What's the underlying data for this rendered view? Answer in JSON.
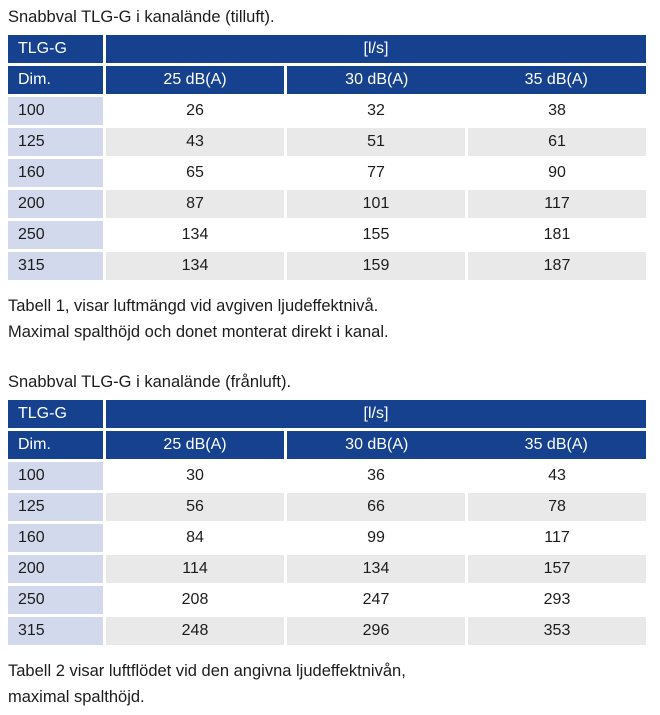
{
  "colors": {
    "header_bg": "#16418e",
    "header_text": "#ffffff",
    "dim_column_bg": "#d3d9ec",
    "stripe_bg": "#e9e9e9",
    "body_text": "#1c1c1c",
    "page_bg": "#ffffff"
  },
  "sections": [
    {
      "title": "Snabbval TLG-G i kanalände (tilluft).",
      "table": {
        "corner_label": "TLG-G",
        "unit_label": "[l/s]",
        "dim_label": "Dim.",
        "col_headers": [
          "25 dB(A)",
          "30 dB(A)",
          "35 dB(A)"
        ],
        "rows": [
          {
            "dim": "100",
            "values": [
              "26",
              "32",
              "38"
            ]
          },
          {
            "dim": "125",
            "values": [
              "43",
              "51",
              "61"
            ]
          },
          {
            "dim": "160",
            "values": [
              "65",
              "77",
              "90"
            ]
          },
          {
            "dim": "200",
            "values": [
              "87",
              "101",
              "117"
            ]
          },
          {
            "dim": "250",
            "values": [
              "134",
              "155",
              "181"
            ]
          },
          {
            "dim": "315",
            "values": [
              "134",
              "159",
              "187"
            ]
          }
        ]
      },
      "caption_lines": [
        "Tabell 1, visar luftmängd vid avgiven ljudeffektnivå.",
        "Maximal spalthöjd och donet monterat direkt i kanal."
      ]
    },
    {
      "title": "Snabbval TLG-G i kanalände (frånluft).",
      "table": {
        "corner_label": "TLG-G",
        "unit_label": "[l/s]",
        "dim_label": "Dim.",
        "col_headers": [
          "25 dB(A)",
          "30 dB(A)",
          "35 dB(A)"
        ],
        "rows": [
          {
            "dim": "100",
            "values": [
              "30",
              "36",
              "43"
            ]
          },
          {
            "dim": "125",
            "values": [
              "56",
              "66",
              "78"
            ]
          },
          {
            "dim": "160",
            "values": [
              "84",
              "99",
              "117"
            ]
          },
          {
            "dim": "200",
            "values": [
              "114",
              "134",
              "157"
            ]
          },
          {
            "dim": "250",
            "values": [
              "208",
              "247",
              "293"
            ]
          },
          {
            "dim": "315",
            "values": [
              "248",
              "296",
              "353"
            ]
          }
        ]
      },
      "caption_lines": [
        "Tabell 2 visar luftflödet vid den angivna ljudeffektnivån,",
        "maximal spalthöjd."
      ]
    }
  ]
}
